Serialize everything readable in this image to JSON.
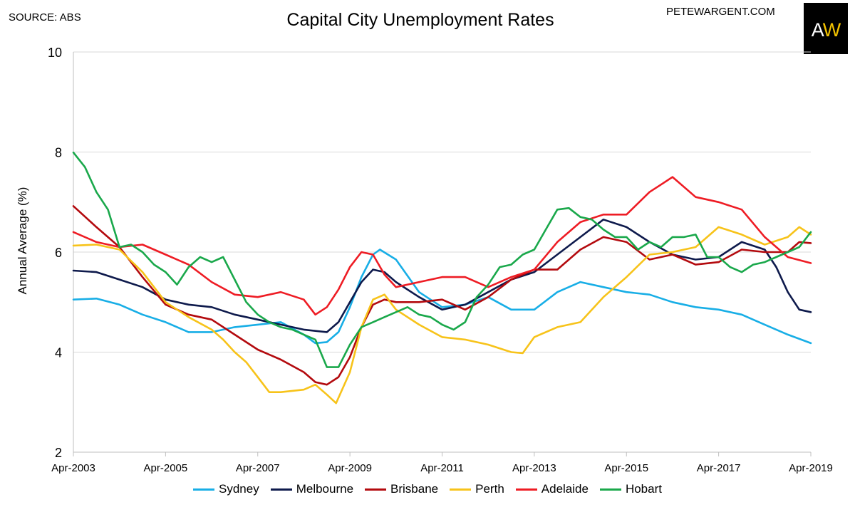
{
  "header": {
    "source": "SOURCE: ABS",
    "site": "PETEWARGENT.COM",
    "logo_a": "A",
    "logo_w": "W"
  },
  "chart_data": {
    "type": "line",
    "title": "Capital City Unemployment Rates",
    "xlabel": "",
    "ylabel": "Annual Average (%)",
    "ylim": [
      2,
      10
    ],
    "yticks": [
      2,
      4,
      6,
      8,
      10
    ],
    "xlim": [
      2003.25,
      2019.25
    ],
    "xticks": [
      {
        "value": 2003.25,
        "label": "Apr-2003"
      },
      {
        "value": 2005.25,
        "label": "Apr-2005"
      },
      {
        "value": 2007.25,
        "label": "Apr-2007"
      },
      {
        "value": 2009.25,
        "label": "Apr-2009"
      },
      {
        "value": 2011.25,
        "label": "Apr-2011"
      },
      {
        "value": 2013.25,
        "label": "Apr-2013"
      },
      {
        "value": 2015.25,
        "label": "Apr-2015"
      },
      {
        "value": 2017.25,
        "label": "Apr-2017"
      },
      {
        "value": 2019.25,
        "label": "Apr-2019"
      }
    ],
    "grid": true,
    "legend": "bottom",
    "series": [
      {
        "name": "Sydney",
        "color": "#18aee6",
        "x": [
          2003.25,
          2003.75,
          2004.25,
          2004.75,
          2005.25,
          2005.75,
          2006.25,
          2006.75,
          2007.25,
          2007.75,
          2008.25,
          2008.5,
          2008.75,
          2009.0,
          2009.25,
          2009.5,
          2009.75,
          2009.9,
          2010.25,
          2010.75,
          2011.25,
          2011.75,
          2012.25,
          2012.75,
          2013.25,
          2013.75,
          2014.25,
          2014.75,
          2015.25,
          2015.75,
          2016.25,
          2016.75,
          2017.25,
          2017.75,
          2018.25,
          2018.75,
          2019.25
        ],
        "y": [
          5.05,
          5.07,
          4.95,
          4.75,
          4.6,
          4.4,
          4.4,
          4.5,
          4.55,
          4.6,
          4.35,
          4.18,
          4.2,
          4.4,
          4.9,
          5.5,
          5.95,
          6.05,
          5.85,
          5.2,
          4.9,
          4.95,
          5.1,
          4.85,
          4.85,
          5.2,
          5.4,
          5.3,
          5.2,
          5.15,
          5.0,
          4.9,
          4.85,
          4.75,
          4.55,
          4.35,
          4.18
        ]
      },
      {
        "name": "Melbourne",
        "color": "#0e1a4c",
        "x": [
          2003.25,
          2003.75,
          2004.25,
          2004.75,
          2005.25,
          2005.75,
          2006.25,
          2006.75,
          2007.25,
          2007.75,
          2008.25,
          2008.75,
          2009.0,
          2009.25,
          2009.5,
          2009.75,
          2010.0,
          2010.25,
          2010.75,
          2011.25,
          2011.75,
          2012.25,
          2012.75,
          2013.25,
          2013.75,
          2014.25,
          2014.75,
          2015.25,
          2015.75,
          2016.25,
          2016.75,
          2017.25,
          2017.75,
          2018.25,
          2018.5,
          2018.75,
          2019.0,
          2019.25
        ],
        "y": [
          5.63,
          5.6,
          5.45,
          5.3,
          5.05,
          4.95,
          4.9,
          4.75,
          4.65,
          4.55,
          4.45,
          4.4,
          4.6,
          5.0,
          5.4,
          5.65,
          5.6,
          5.4,
          5.1,
          4.85,
          4.95,
          5.2,
          5.45,
          5.6,
          5.95,
          6.3,
          6.65,
          6.5,
          6.2,
          5.95,
          5.85,
          5.9,
          6.2,
          6.05,
          5.7,
          5.2,
          4.85,
          4.8
        ]
      },
      {
        "name": "Brisbane",
        "color": "#b30a0e",
        "x": [
          2003.25,
          2003.75,
          2004.25,
          2004.75,
          2005.25,
          2005.75,
          2006.25,
          2006.75,
          2007.25,
          2007.75,
          2008.25,
          2008.5,
          2008.75,
          2009.0,
          2009.25,
          2009.5,
          2009.75,
          2010.0,
          2010.25,
          2010.75,
          2011.25,
          2011.75,
          2012.25,
          2012.75,
          2013.25,
          2013.75,
          2014.25,
          2014.75,
          2015.25,
          2015.75,
          2016.25,
          2016.75,
          2017.25,
          2017.75,
          2018.25,
          2018.75,
          2019.0,
          2019.25
        ],
        "y": [
          6.92,
          6.5,
          6.1,
          5.5,
          4.95,
          4.75,
          4.65,
          4.35,
          4.05,
          3.85,
          3.6,
          3.4,
          3.35,
          3.5,
          3.9,
          4.5,
          4.95,
          5.05,
          5.0,
          5.0,
          5.05,
          4.85,
          5.1,
          5.45,
          5.65,
          5.65,
          6.05,
          6.3,
          6.2,
          5.85,
          5.95,
          5.75,
          5.8,
          6.05,
          6.0,
          6.0,
          6.2,
          6.18
        ]
      },
      {
        "name": "Perth",
        "color": "#f7c31a",
        "x": [
          2003.25,
          2003.75,
          2004.25,
          2004.75,
          2005.25,
          2005.75,
          2006.25,
          2006.5,
          2006.75,
          2007.0,
          2007.25,
          2007.5,
          2007.75,
          2008.25,
          2008.5,
          2008.75,
          2008.95,
          2009.25,
          2009.5,
          2009.75,
          2010.0,
          2010.25,
          2010.75,
          2011.25,
          2011.75,
          2012.25,
          2012.75,
          2013.0,
          2013.25,
          2013.75,
          2014.25,
          2014.75,
          2015.25,
          2015.75,
          2016.25,
          2016.75,
          2017.25,
          2017.75,
          2018.25,
          2018.75,
          2019.0,
          2019.25
        ],
        "y": [
          6.13,
          6.15,
          6.05,
          5.6,
          5.0,
          4.7,
          4.45,
          4.25,
          4.0,
          3.8,
          3.5,
          3.2,
          3.2,
          3.25,
          3.35,
          3.15,
          2.98,
          3.6,
          4.5,
          5.05,
          5.15,
          4.85,
          4.55,
          4.3,
          4.25,
          4.15,
          4.0,
          3.98,
          4.3,
          4.5,
          4.6,
          5.1,
          5.5,
          5.95,
          6.0,
          6.1,
          6.5,
          6.35,
          6.15,
          6.3,
          6.5,
          6.35
        ]
      },
      {
        "name": "Adelaide",
        "color": "#ee1c24",
        "x": [
          2003.25,
          2003.75,
          2004.25,
          2004.75,
          2005.25,
          2005.75,
          2006.25,
          2006.75,
          2007.25,
          2007.75,
          2008.25,
          2008.5,
          2008.75,
          2009.0,
          2009.25,
          2009.5,
          2009.75,
          2010.0,
          2010.25,
          2010.75,
          2011.25,
          2011.75,
          2012.25,
          2012.75,
          2013.25,
          2013.75,
          2014.25,
          2014.75,
          2015.25,
          2015.75,
          2016.0,
          2016.25,
          2016.75,
          2017.25,
          2017.75,
          2018.25,
          2018.75,
          2019.25
        ],
        "y": [
          6.4,
          6.2,
          6.1,
          6.15,
          5.95,
          5.75,
          5.4,
          5.15,
          5.1,
          5.2,
          5.05,
          4.75,
          4.9,
          5.25,
          5.7,
          6.0,
          5.95,
          5.55,
          5.3,
          5.4,
          5.5,
          5.5,
          5.3,
          5.5,
          5.65,
          6.2,
          6.6,
          6.75,
          6.75,
          7.2,
          7.35,
          7.5,
          7.1,
          7.0,
          6.85,
          6.3,
          5.9,
          5.78
        ]
      },
      {
        "name": "Hobart",
        "color": "#1aa84b",
        "x": [
          2003.25,
          2003.5,
          2003.75,
          2004.0,
          2004.25,
          2004.5,
          2004.75,
          2005.0,
          2005.25,
          2005.5,
          2005.75,
          2006.0,
          2006.25,
          2006.5,
          2006.75,
          2007.0,
          2007.25,
          2007.5,
          2007.75,
          2008.0,
          2008.25,
          2008.5,
          2008.75,
          2009.0,
          2009.25,
          2009.5,
          2009.75,
          2010.0,
          2010.25,
          2010.5,
          2010.75,
          2011.0,
          2011.25,
          2011.5,
          2011.75,
          2012.0,
          2012.25,
          2012.5,
          2012.75,
          2013.0,
          2013.25,
          2013.5,
          2013.75,
          2014.0,
          2014.25,
          2014.5,
          2014.75,
          2015.0,
          2015.25,
          2015.5,
          2015.75,
          2016.0,
          2016.25,
          2016.5,
          2016.75,
          2017.0,
          2017.25,
          2017.5,
          2017.75,
          2018.0,
          2018.25,
          2018.5,
          2018.75,
          2019.0,
          2019.25
        ],
        "y": [
          7.99,
          7.7,
          7.2,
          6.85,
          6.1,
          6.15,
          6.0,
          5.75,
          5.6,
          5.35,
          5.7,
          5.9,
          5.8,
          5.9,
          5.45,
          5.0,
          4.75,
          4.6,
          4.5,
          4.45,
          4.35,
          4.25,
          3.7,
          3.7,
          4.15,
          4.5,
          4.6,
          4.7,
          4.8,
          4.9,
          4.75,
          4.7,
          4.55,
          4.45,
          4.6,
          5.1,
          5.35,
          5.7,
          5.75,
          5.95,
          6.05,
          6.45,
          6.85,
          6.88,
          6.7,
          6.65,
          6.45,
          6.3,
          6.3,
          6.05,
          6.2,
          6.1,
          6.3,
          6.3,
          6.35,
          5.9,
          5.9,
          5.7,
          5.6,
          5.75,
          5.8,
          5.9,
          6.0,
          6.1,
          6.4
        ]
      }
    ]
  }
}
